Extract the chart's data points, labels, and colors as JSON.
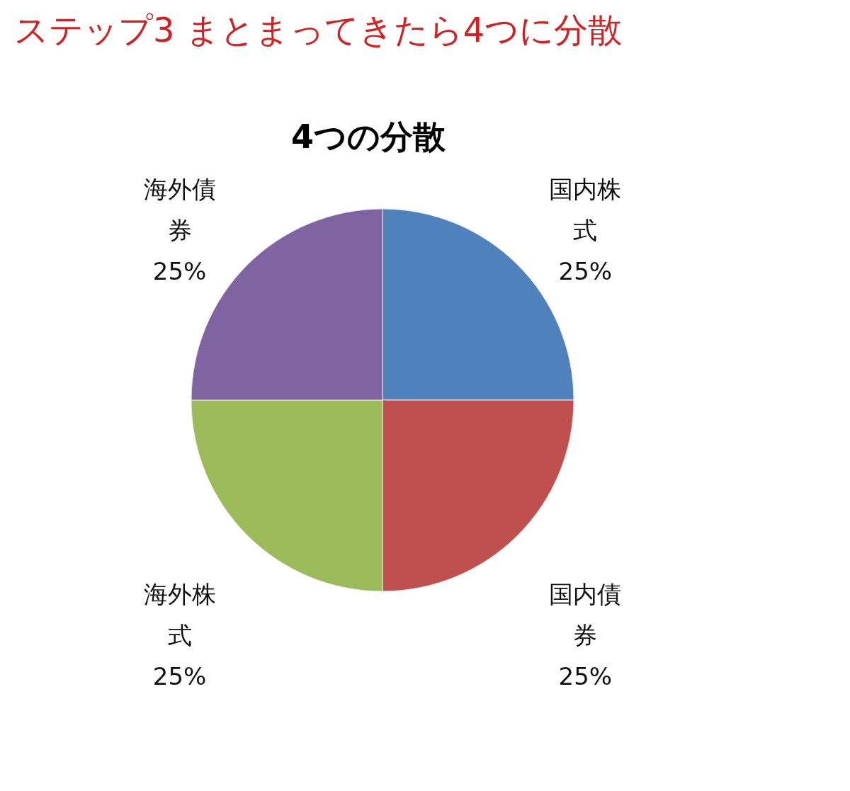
{
  "chart_data": {
    "type": "pie",
    "title": "ステップ3 まとまってきたら4つに分散",
    "subtitle": "4つの分散",
    "categories": [
      "国内株式",
      "国内債券",
      "海外株式",
      "海外債券"
    ],
    "values": [
      25,
      25,
      25,
      25
    ],
    "colors": [
      "#4f81bd",
      "#c0504d",
      "#9bbb59",
      "#8064a2"
    ],
    "value_labels": [
      "25%",
      "25%",
      "25%",
      "25%"
    ]
  }
}
